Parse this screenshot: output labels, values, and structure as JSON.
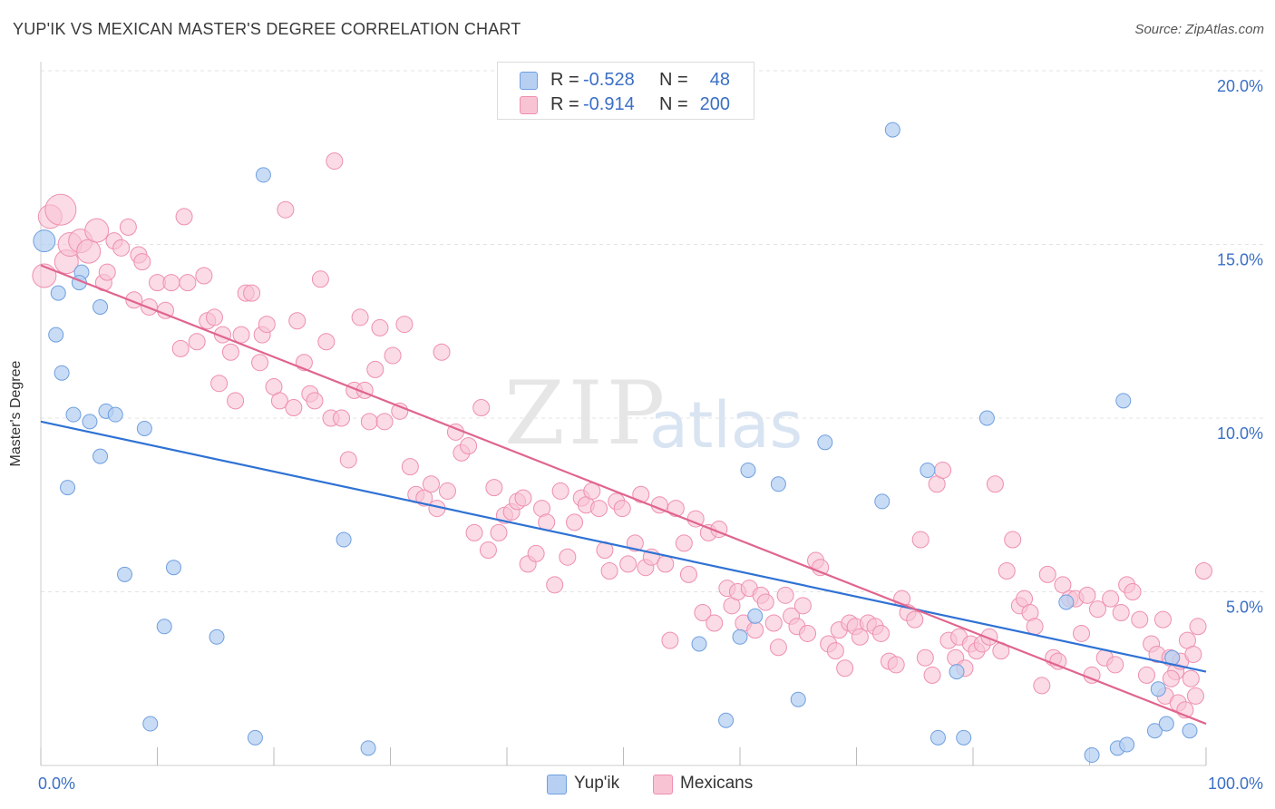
{
  "title": "YUP'IK VS MEXICAN MASTER'S DEGREE CORRELATION CHART",
  "source": "Source: ZipAtlas.com",
  "watermark": {
    "zip": "ZIP",
    "atlas": "atlas"
  },
  "legend": {
    "rows": [
      {
        "r_label": "R =",
        "r_value": "-0.528",
        "n_label": "N =",
        "n_value": "48"
      },
      {
        "r_label": "R =",
        "r_value": "-0.914",
        "n_label": "N =",
        "n_value": "200"
      }
    ]
  },
  "bottom_legend": [
    "Yup'ik",
    "Mexicans"
  ],
  "chart_data": {
    "type": "scatter",
    "title": "YUP'IK VS MEXICAN MASTER'S DEGREE CORRELATION CHART",
    "xlabel": "",
    "ylabel": "Master's Degree",
    "xlim": [
      0,
      100
    ],
    "ylim": [
      0,
      20
    ],
    "x_tick_labels": [
      "0.0%",
      "100.0%"
    ],
    "y_tick_labels": [
      "5.0%",
      "10.0%",
      "15.0%",
      "20.0%"
    ],
    "y_ticks": [
      5,
      10,
      15,
      20
    ],
    "grid": true,
    "legend_position": "top-center",
    "colors": {
      "yupik_fill": "#b7d0f2",
      "yupik_edge": "#6f9fe0",
      "yupik_line": "#2f72d4",
      "mex_fill": "#f8c3d3",
      "mex_edge": "#ee8fb0",
      "mex_line": "#e0658e",
      "axis_text": "#3a6fc4"
    },
    "series": [
      {
        "name": "Yup'ik",
        "r": -0.528,
        "n": 48,
        "trend": {
          "x": [
            0,
            100
          ],
          "y": [
            9.9,
            2.7
          ]
        },
        "points": [
          [
            0.3,
            15.1
          ],
          [
            1.3,
            12.4
          ],
          [
            1.5,
            13.6
          ],
          [
            1.8,
            11.3
          ],
          [
            2.3,
            8.0
          ],
          [
            2.8,
            10.1
          ],
          [
            3.5,
            14.2
          ],
          [
            3.3,
            13.9
          ],
          [
            4.2,
            9.9
          ],
          [
            5.1,
            8.9
          ],
          [
            5.1,
            13.2
          ],
          [
            5.6,
            10.2
          ],
          [
            6.4,
            10.1
          ],
          [
            7.2,
            5.5
          ],
          [
            8.9,
            9.7
          ],
          [
            9.4,
            1.2
          ],
          [
            10.6,
            4.0
          ],
          [
            11.4,
            5.7
          ],
          [
            15.1,
            3.7
          ],
          [
            18.4,
            0.8
          ],
          [
            19.1,
            17.0
          ],
          [
            26.0,
            6.5
          ],
          [
            28.1,
            0.5
          ],
          [
            56.5,
            3.5
          ],
          [
            58.8,
            1.3
          ],
          [
            60.0,
            3.7
          ],
          [
            61.3,
            4.3
          ],
          [
            60.7,
            8.5
          ],
          [
            63.3,
            8.1
          ],
          [
            65.0,
            1.9
          ],
          [
            67.3,
            9.3
          ],
          [
            72.2,
            7.6
          ],
          [
            73.1,
            18.3
          ],
          [
            76.1,
            8.5
          ],
          [
            77.0,
            0.8
          ],
          [
            78.6,
            2.7
          ],
          [
            79.2,
            0.8
          ],
          [
            81.2,
            10.0
          ],
          [
            88.0,
            4.7
          ],
          [
            90.2,
            0.3
          ],
          [
            92.4,
            0.5
          ],
          [
            92.9,
            10.5
          ],
          [
            93.2,
            0.6
          ],
          [
            95.6,
            1.0
          ],
          [
            95.9,
            2.2
          ],
          [
            96.6,
            1.2
          ],
          [
            97.1,
            3.1
          ],
          [
            98.6,
            1.0
          ]
        ]
      },
      {
        "name": "Mexicans",
        "r": -0.914,
        "n": 200,
        "trend": {
          "x": [
            0,
            100
          ],
          "y": [
            14.4,
            1.2
          ]
        },
        "points": [
          [
            0.3,
            14.1
          ],
          [
            0.8,
            15.8
          ],
          [
            1.7,
            16.0
          ],
          [
            2.2,
            14.5
          ],
          [
            2.5,
            15.0
          ],
          [
            3.4,
            15.1
          ],
          [
            4.1,
            14.8
          ],
          [
            4.8,
            15.4
          ],
          [
            5.4,
            13.9
          ],
          [
            5.7,
            14.2
          ],
          [
            6.3,
            15.1
          ],
          [
            6.9,
            14.9
          ],
          [
            7.5,
            15.5
          ],
          [
            8.0,
            13.4
          ],
          [
            8.4,
            14.7
          ],
          [
            8.7,
            14.5
          ],
          [
            9.3,
            13.2
          ],
          [
            10.0,
            13.9
          ],
          [
            10.7,
            13.1
          ],
          [
            11.2,
            13.9
          ],
          [
            12.0,
            12.0
          ],
          [
            12.3,
            15.8
          ],
          [
            12.6,
            13.9
          ],
          [
            13.4,
            12.2
          ],
          [
            14.0,
            14.1
          ],
          [
            14.3,
            12.8
          ],
          [
            14.9,
            12.9
          ],
          [
            15.3,
            11.0
          ],
          [
            15.6,
            12.4
          ],
          [
            16.3,
            11.9
          ],
          [
            16.7,
            10.5
          ],
          [
            17.2,
            12.4
          ],
          [
            17.6,
            13.6
          ],
          [
            18.1,
            13.6
          ],
          [
            18.8,
            11.6
          ],
          [
            19.0,
            12.4
          ],
          [
            19.4,
            12.7
          ],
          [
            20.0,
            10.9
          ],
          [
            20.5,
            10.5
          ],
          [
            21.0,
            16.0
          ],
          [
            21.7,
            10.3
          ],
          [
            22.0,
            12.8
          ],
          [
            22.6,
            11.6
          ],
          [
            23.1,
            10.7
          ],
          [
            23.5,
            10.5
          ],
          [
            24.0,
            14.0
          ],
          [
            24.5,
            12.2
          ],
          [
            24.9,
            10.0
          ],
          [
            25.2,
            17.4
          ],
          [
            25.8,
            10.0
          ],
          [
            26.4,
            8.8
          ],
          [
            26.9,
            10.8
          ],
          [
            27.4,
            12.9
          ],
          [
            27.8,
            10.8
          ],
          [
            28.2,
            9.9
          ],
          [
            28.7,
            11.4
          ],
          [
            29.1,
            12.6
          ],
          [
            29.5,
            9.9
          ],
          [
            30.2,
            11.8
          ],
          [
            30.8,
            10.2
          ],
          [
            31.2,
            12.7
          ],
          [
            31.7,
            8.6
          ],
          [
            32.2,
            7.8
          ],
          [
            32.9,
            7.7
          ],
          [
            33.5,
            8.1
          ],
          [
            34.0,
            7.4
          ],
          [
            34.4,
            11.9
          ],
          [
            34.9,
            7.9
          ],
          [
            35.6,
            9.6
          ],
          [
            36.1,
            9.0
          ],
          [
            36.7,
            9.2
          ],
          [
            37.2,
            6.7
          ],
          [
            37.8,
            10.3
          ],
          [
            38.4,
            6.2
          ],
          [
            38.9,
            8.0
          ],
          [
            39.3,
            6.7
          ],
          [
            39.8,
            7.2
          ],
          [
            40.4,
            7.3
          ],
          [
            40.9,
            7.6
          ],
          [
            41.4,
            7.7
          ],
          [
            41.8,
            5.8
          ],
          [
            42.5,
            6.1
          ],
          [
            43.0,
            7.4
          ],
          [
            43.4,
            7.0
          ],
          [
            44.1,
            5.2
          ],
          [
            44.6,
            7.9
          ],
          [
            45.2,
            6.0
          ],
          [
            45.8,
            7.0
          ],
          [
            46.4,
            7.7
          ],
          [
            46.8,
            7.5
          ],
          [
            47.3,
            7.9
          ],
          [
            47.9,
            7.4
          ],
          [
            48.4,
            6.2
          ],
          [
            48.8,
            5.6
          ],
          [
            49.4,
            7.6
          ],
          [
            49.9,
            7.4
          ],
          [
            50.4,
            5.8
          ],
          [
            51.0,
            6.4
          ],
          [
            51.5,
            7.8
          ],
          [
            51.9,
            5.7
          ],
          [
            52.4,
            6.0
          ],
          [
            53.1,
            7.5
          ],
          [
            53.6,
            5.8
          ],
          [
            54.0,
            3.6
          ],
          [
            54.5,
            7.4
          ],
          [
            55.2,
            6.4
          ],
          [
            55.6,
            5.5
          ],
          [
            56.2,
            7.1
          ],
          [
            56.8,
            4.4
          ],
          [
            57.3,
            6.7
          ],
          [
            57.8,
            4.1
          ],
          [
            58.2,
            6.8
          ],
          [
            58.9,
            5.1
          ],
          [
            59.3,
            4.6
          ],
          [
            59.8,
            5.0
          ],
          [
            60.3,
            4.1
          ],
          [
            60.8,
            5.1
          ],
          [
            61.3,
            3.9
          ],
          [
            61.8,
            4.9
          ],
          [
            62.2,
            4.7
          ],
          [
            62.9,
            4.1
          ],
          [
            63.3,
            3.4
          ],
          [
            63.9,
            4.9
          ],
          [
            64.4,
            4.3
          ],
          [
            64.9,
            4.0
          ],
          [
            65.4,
            4.6
          ],
          [
            65.8,
            3.8
          ],
          [
            66.5,
            5.9
          ],
          [
            66.9,
            5.7
          ],
          [
            67.6,
            3.5
          ],
          [
            68.2,
            3.3
          ],
          [
            68.5,
            3.9
          ],
          [
            69.0,
            2.8
          ],
          [
            69.4,
            4.1
          ],
          [
            69.9,
            4.0
          ],
          [
            70.3,
            3.7
          ],
          [
            71.0,
            4.1
          ],
          [
            71.6,
            4.0
          ],
          [
            72.1,
            3.8
          ],
          [
            72.8,
            3.0
          ],
          [
            73.4,
            2.9
          ],
          [
            73.9,
            4.8
          ],
          [
            74.4,
            4.4
          ],
          [
            75.0,
            4.2
          ],
          [
            75.5,
            6.5
          ],
          [
            75.9,
            3.1
          ],
          [
            76.5,
            2.6
          ],
          [
            76.9,
            8.1
          ],
          [
            77.4,
            8.5
          ],
          [
            77.9,
            3.6
          ],
          [
            78.5,
            3.1
          ],
          [
            78.8,
            3.7
          ],
          [
            79.3,
            2.8
          ],
          [
            79.8,
            3.5
          ],
          [
            80.3,
            3.3
          ],
          [
            80.8,
            3.5
          ],
          [
            81.4,
            3.7
          ],
          [
            81.9,
            8.1
          ],
          [
            82.4,
            3.3
          ],
          [
            82.9,
            5.6
          ],
          [
            83.4,
            6.5
          ],
          [
            84.0,
            4.6
          ],
          [
            84.4,
            4.8
          ],
          [
            84.9,
            4.4
          ],
          [
            85.3,
            4.0
          ],
          [
            85.9,
            2.3
          ],
          [
            86.4,
            5.5
          ],
          [
            86.9,
            3.1
          ],
          [
            87.3,
            3.0
          ],
          [
            87.7,
            5.2
          ],
          [
            88.3,
            4.8
          ],
          [
            88.8,
            4.8
          ],
          [
            89.3,
            3.8
          ],
          [
            89.8,
            4.9
          ],
          [
            90.2,
            2.6
          ],
          [
            90.7,
            4.5
          ],
          [
            91.3,
            3.1
          ],
          [
            91.8,
            4.8
          ],
          [
            92.2,
            2.9
          ],
          [
            92.7,
            4.4
          ],
          [
            93.2,
            5.2
          ],
          [
            93.7,
            5.0
          ],
          [
            94.3,
            4.2
          ],
          [
            94.9,
            2.6
          ],
          [
            95.3,
            3.5
          ],
          [
            95.8,
            3.2
          ],
          [
            96.3,
            4.2
          ],
          [
            96.9,
            3.1
          ],
          [
            97.4,
            2.7
          ],
          [
            97.8,
            3.0
          ],
          [
            98.4,
            3.6
          ],
          [
            98.9,
            3.2
          ],
          [
            99.3,
            4.0
          ],
          [
            99.8,
            5.6
          ],
          [
            96.5,
            2.0
          ],
          [
            97.0,
            2.5
          ],
          [
            97.6,
            1.8
          ],
          [
            98.2,
            1.6
          ],
          [
            98.7,
            2.5
          ],
          [
            99.1,
            2.0
          ]
        ]
      }
    ]
  }
}
